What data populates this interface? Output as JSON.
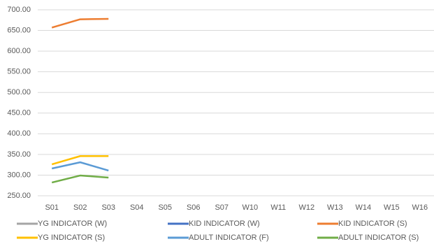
{
  "chart_data": {
    "type": "line",
    "categories": [
      "S01",
      "S02",
      "S03",
      "S04",
      "S05",
      "S06",
      "S07",
      "W10",
      "W11",
      "W12",
      "W13",
      "W14",
      "W15",
      "W16"
    ],
    "series": [
      {
        "name": "YG INDICATOR (W)",
        "color": "#a5a5a5",
        "values": [
          null,
          null,
          null,
          null,
          null,
          null,
          null,
          null,
          null,
          null,
          null,
          null,
          null,
          null
        ]
      },
      {
        "name": "KID INDICATOR (W)",
        "color": "#4472c4",
        "values": [
          null,
          null,
          null,
          null,
          null,
          null,
          null,
          null,
          null,
          null,
          null,
          null,
          null,
          null
        ]
      },
      {
        "name": "KID INDICATOR (S)",
        "color": "#ed7d31",
        "values": [
          657,
          677,
          678,
          null,
          null,
          null,
          null,
          null,
          null,
          null,
          null,
          null,
          null,
          null
        ]
      },
      {
        "name": "YG INDICATOR (S)",
        "color": "#ffc000",
        "values": [
          326,
          346,
          346,
          null,
          null,
          null,
          null,
          null,
          null,
          null,
          null,
          null,
          null,
          null
        ]
      },
      {
        "name": "ADULT INDICATOR (F)",
        "color": "#5b9bd5",
        "values": [
          316,
          331,
          311,
          null,
          null,
          null,
          null,
          null,
          null,
          null,
          null,
          null,
          null,
          null
        ]
      },
      {
        "name": "ADULT INDICATOR (S)",
        "color": "#70ad47",
        "values": [
          282,
          299,
          294,
          null,
          null,
          null,
          null,
          null,
          null,
          null,
          null,
          null,
          null,
          null
        ]
      }
    ],
    "ylim": [
      250,
      700
    ],
    "yticks": [
      {
        "value": 250,
        "label": "250.00"
      },
      {
        "value": 300,
        "label": "300.00"
      },
      {
        "value": 350,
        "label": "350.00"
      },
      {
        "value": 400,
        "label": "400.00"
      },
      {
        "value": 450,
        "label": "450.00"
      },
      {
        "value": 500,
        "label": "500.00"
      },
      {
        "value": 550,
        "label": "550.00"
      },
      {
        "value": 600,
        "label": "600.00"
      },
      {
        "value": 650,
        "label": "650.00"
      },
      {
        "value": 700,
        "label": "700.00"
      }
    ],
    "grid": true,
    "legend": "bottom"
  }
}
